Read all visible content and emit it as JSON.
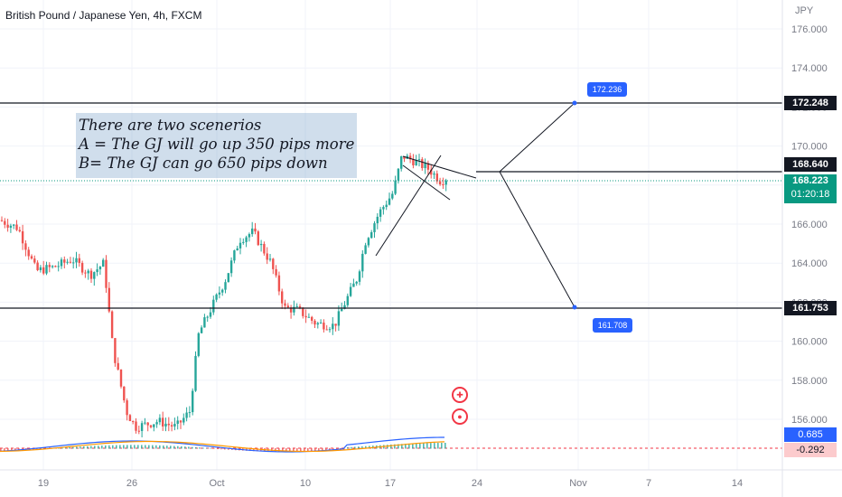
{
  "header": {
    "symbol_title": "British Pound / Japanese Yen, 4h, FXCM",
    "currency": "JPY"
  },
  "y_axis": {
    "ticks": [
      "176.000",
      "174.000",
      "172.000",
      "170.000",
      "168.000",
      "166.000",
      "164.000",
      "162.000",
      "160.000",
      "158.000",
      "156.000"
    ],
    "tick_values": [
      176,
      174,
      172,
      170,
      168,
      166,
      164,
      162,
      160,
      158,
      156
    ]
  },
  "x_axis": {
    "ticks": [
      "19",
      "26",
      "Oct",
      "10",
      "17",
      "24",
      "Nov",
      "7",
      "14"
    ]
  },
  "price_tags": {
    "upper_level": "172.248",
    "middle_level": "168.640",
    "last_price": "168.223",
    "countdown": "01:20:18",
    "lower_level": "161.753",
    "macd_value": "0.685",
    "macd_signal": "-0.292"
  },
  "targets": {
    "up": "172.236",
    "down": "161.708"
  },
  "note": {
    "line1": "There are two scenerios",
    "line2": "A = The GJ will go up 350 pips more",
    "line3": "B= The GJ can go 650 pips down"
  },
  "colors": {
    "bull": "#26a69a",
    "bear": "#ef5350",
    "accent": "#2962ff",
    "last_price": "#089981"
  },
  "icons": [
    "uk-flag-icon",
    "japan-flag-icon"
  ]
}
